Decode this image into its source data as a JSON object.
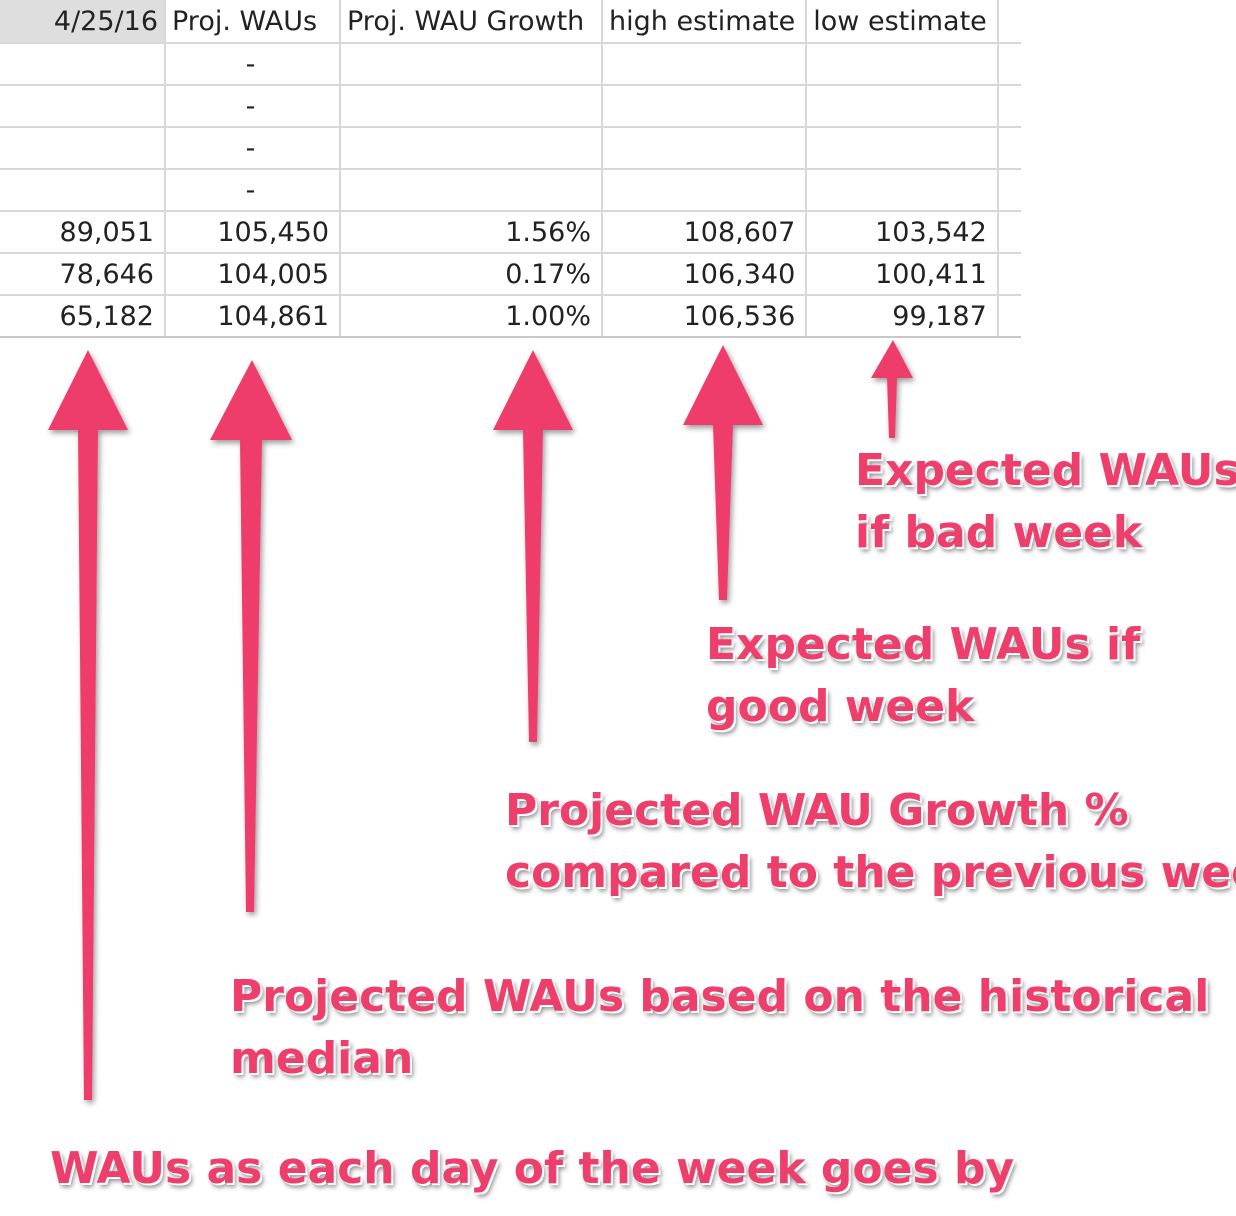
{
  "sheet": {
    "header": [
      "4/25/16",
      "Proj. WAUs",
      "Proj. WAU Growth",
      "high estimate",
      "low estimate"
    ],
    "rows": [
      [
        "",
        "-",
        "",
        "",
        ""
      ],
      [
        "",
        "-",
        "",
        "",
        ""
      ],
      [
        "",
        "-",
        "",
        "",
        ""
      ],
      [
        "",
        "-",
        "",
        "",
        ""
      ],
      [
        "89,051",
        "105,450",
        "1.56%",
        "108,607",
        "103,542"
      ],
      [
        "78,646",
        "104,005",
        "0.17%",
        "106,340",
        "100,411"
      ],
      [
        "65,182",
        "104,861",
        "1.00%",
        "106,536",
        "99,187"
      ]
    ]
  },
  "annotations": {
    "bad_week": [
      "Expected WAUs",
      "if bad week"
    ],
    "good_week": [
      "Expected WAUs if",
      "good week"
    ],
    "growth": [
      "Projected WAU Growth %",
      "compared to the previous week"
    ],
    "projected": [
      "Projected WAUs based on the historical",
      "median"
    ],
    "daily": [
      "WAUs as each day of the week goes by"
    ]
  },
  "colors": {
    "annotation": "#ee3e6b",
    "grid": "#d8d8d8",
    "header_fill": "#dedede"
  }
}
